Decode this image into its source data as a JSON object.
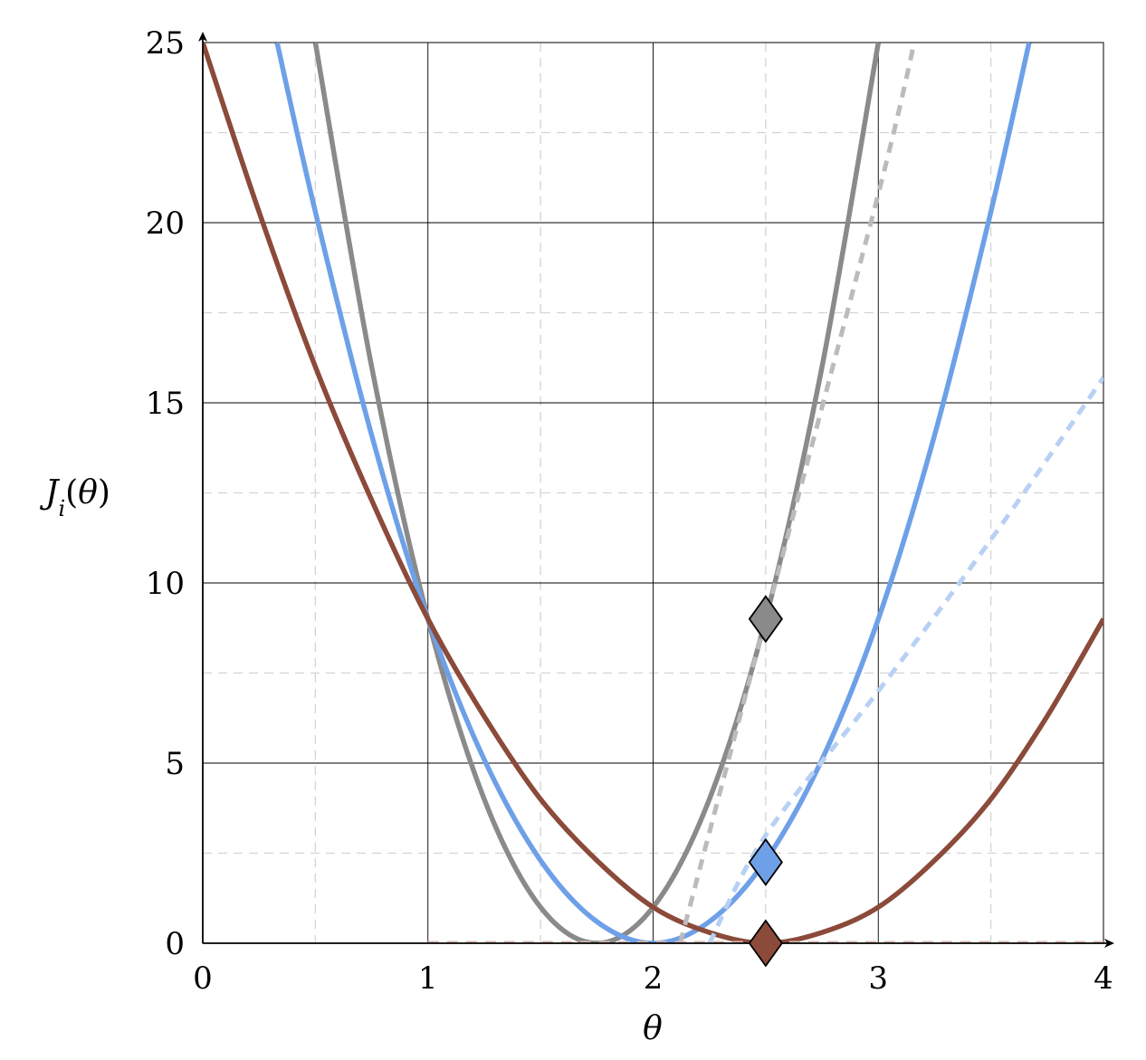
{
  "chart_data": {
    "type": "line",
    "xlabel": "θ",
    "ylabel": "J_i(θ)",
    "xlim": [
      0,
      4
    ],
    "ylim": [
      0,
      25
    ],
    "x_ticks": [
      0,
      1,
      2,
      3,
      4
    ],
    "y_ticks": [
      0,
      5,
      10,
      15,
      20,
      25
    ],
    "x_minor_grid": [
      0.5,
      1.5,
      2.5,
      3.5
    ],
    "y_minor_grid": [
      2.5,
      7.5,
      12.5,
      17.5,
      22.5
    ],
    "grid": true,
    "series": [
      {
        "style": "solid",
        "color": "#8a8a8a",
        "points": [
          [
            0.5,
            25.0
          ],
          [
            0.75,
            16.0
          ],
          [
            1.0,
            9.0
          ],
          [
            1.25,
            4.0
          ],
          [
            1.5,
            1.0
          ],
          [
            1.75,
            0.0
          ],
          [
            2.0,
            1.0
          ],
          [
            2.25,
            4.0
          ],
          [
            2.5,
            9.0
          ],
          [
            2.75,
            16.0
          ],
          [
            3.0,
            25.0
          ]
        ]
      },
      {
        "style": "solid",
        "color": "#6ea0e8",
        "points": [
          [
            0.33,
            25.0
          ],
          [
            0.5,
            20.3
          ],
          [
            0.75,
            14.1
          ],
          [
            1.0,
            9.0
          ],
          [
            1.25,
            5.1
          ],
          [
            1.5,
            2.3
          ],
          [
            1.75,
            0.6
          ],
          [
            2.0,
            0.0
          ],
          [
            2.25,
            0.6
          ],
          [
            2.5,
            2.3
          ],
          [
            2.75,
            5.1
          ],
          [
            3.0,
            9.0
          ],
          [
            3.25,
            14.1
          ],
          [
            3.5,
            20.3
          ],
          [
            3.67,
            25.0
          ]
        ]
      },
      {
        "style": "solid",
        "color": "#8b4a3a",
        "points": [
          [
            0.0,
            25.0
          ],
          [
            0.25,
            20.3
          ],
          [
            0.5,
            16.0
          ],
          [
            0.75,
            12.3
          ],
          [
            1.0,
            9.0
          ],
          [
            1.25,
            6.3
          ],
          [
            1.5,
            4.0
          ],
          [
            1.75,
            2.3
          ],
          [
            2.0,
            1.0
          ],
          [
            2.25,
            0.3
          ],
          [
            2.5,
            0.0
          ],
          [
            2.75,
            0.3
          ],
          [
            3.0,
            1.0
          ],
          [
            3.25,
            2.3
          ],
          [
            3.5,
            4.0
          ],
          [
            3.75,
            6.3
          ],
          [
            4.0,
            9.0
          ]
        ]
      },
      {
        "style": "dashed",
        "color": "#bbbbbb",
        "points": [
          [
            2.12,
            0.0
          ],
          [
            2.5,
            9.0
          ],
          [
            3.0,
            20.8
          ],
          [
            3.16,
            25.0
          ]
        ]
      },
      {
        "style": "dashed",
        "color": "#b8d0f4",
        "points": [
          [
            2.25,
            0.0
          ],
          [
            2.5,
            3.0
          ],
          [
            3.0,
            7.0
          ],
          [
            3.5,
            11.2
          ],
          [
            4.0,
            15.7
          ]
        ]
      },
      {
        "style": "dashed",
        "color": "#d8b8b0",
        "points": [
          [
            1.0,
            0.0
          ],
          [
            4.0,
            0.0
          ]
        ]
      }
    ],
    "markers": [
      {
        "shape": "diamond",
        "color": "#8a8a8a",
        "x": 2.5,
        "y": 9.0
      },
      {
        "shape": "diamond",
        "color": "#6ea0e8",
        "x": 2.5,
        "y": 2.25
      },
      {
        "shape": "diamond",
        "color": "#8b4a3a",
        "x": 2.5,
        "y": 0.0
      }
    ]
  }
}
